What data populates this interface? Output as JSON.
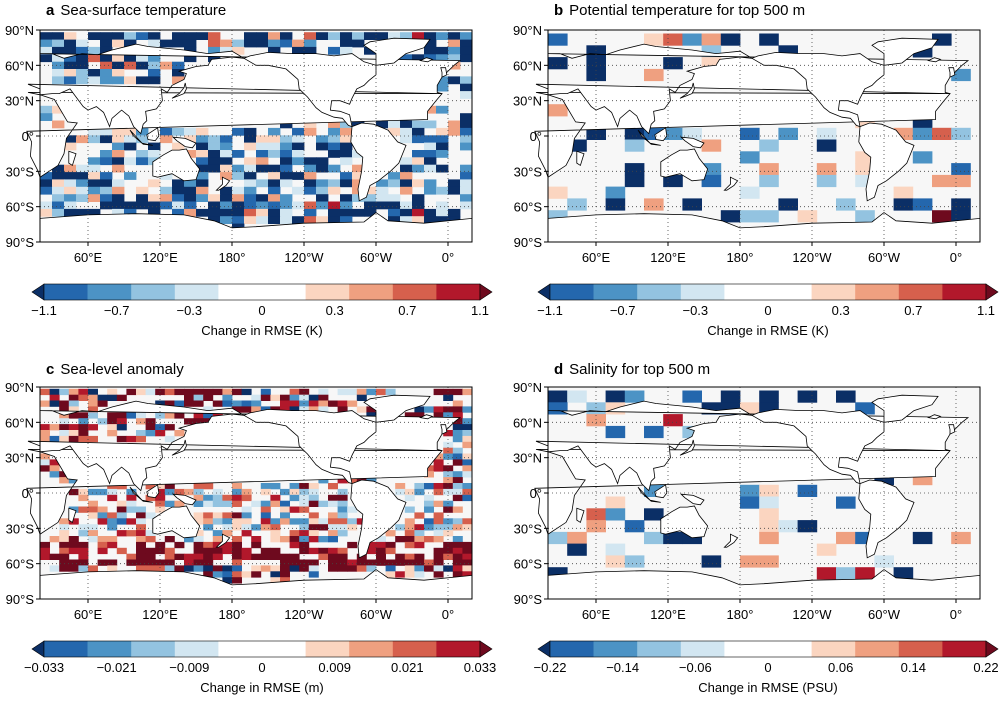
{
  "chart_data": [
    {
      "type": "heatmap",
      "panel_letter": "a",
      "title": "Sea-surface temperature",
      "lat_ticks": [
        "90°N",
        "60°N",
        "30°N",
        "0°",
        "30°S",
        "60°S",
        "90°S"
      ],
      "lon_ticks": [
        "60°E",
        "120°E",
        "180°",
        "120°W",
        "60°W",
        "0°"
      ],
      "colorbar": {
        "tick_labels": [
          "−1.1",
          "−0.7",
          "−0.3",
          "0",
          "0.3",
          "0.7",
          "1.1"
        ],
        "label": "Change in RMSE (K)",
        "range": [
          -1.1,
          1.1
        ]
      },
      "spatial_pattern": "widespread light-blue RMSE reduction, strongest dark-blue reductions in North Atlantic, North Pacific high latitudes and Southern Ocean, scattered red increases near 40°S",
      "seed": 11,
      "density": 0.85,
      "bias": -0.45,
      "res": 10
    },
    {
      "type": "heatmap",
      "panel_letter": "b",
      "title": "Potential temperature for top 500 m",
      "lat_ticks": [
        "90°N",
        "60°N",
        "30°N",
        "0°",
        "30°S",
        "60°S",
        "90°S"
      ],
      "lon_ticks": [
        "60°E",
        "120°E",
        "180°",
        "120°W",
        "60°W",
        "0°"
      ],
      "colorbar": {
        "tick_labels": [
          "−1.1",
          "−0.7",
          "−0.3",
          "0",
          "0.3",
          "0.7",
          "1.1"
        ],
        "label": "Change in RMSE (K)",
        "range": [
          -1.1,
          1.1
        ]
      },
      "spatial_pattern": "coarse grid cells, mostly light blue reductions, dark blue near Antarctica and North Atlantic, red cells near Indonesia and 40°S",
      "seed": 23,
      "density": 0.35,
      "bias": -0.3,
      "res": 16
    },
    {
      "type": "heatmap",
      "panel_letter": "c",
      "title": "Sea-level anomaly",
      "lat_ticks": [
        "90°N",
        "60°N",
        "30°N",
        "0°",
        "30°S",
        "60°S",
        "90°S"
      ],
      "lon_ticks": [
        "60°E",
        "120°E",
        "180°",
        "120°W",
        "60°W",
        "0°"
      ],
      "colorbar": {
        "tick_labels": [
          "−0.033",
          "−0.021",
          "−0.009",
          "0",
          "0.009",
          "0.021",
          "0.033"
        ],
        "label": "Change in RMSE (m)",
        "range": [
          -0.033,
          0.033
        ]
      },
      "spatial_pattern": "mixed red and blue; strong red increases along Kuroshio, Gulf Stream and Antarctic Circumpolar Current, blue in tropics",
      "seed": 37,
      "density": 0.7,
      "bias": 0.15,
      "res": 8
    },
    {
      "type": "heatmap",
      "panel_letter": "d",
      "title": "Salinity for top 500 m",
      "lat_ticks": [
        "90°N",
        "60°N",
        "30°N",
        "0°",
        "30°S",
        "60°S",
        "90°S"
      ],
      "lon_ticks": [
        "60°E",
        "120°E",
        "180°",
        "120°W",
        "60°W",
        "0°"
      ],
      "colorbar": {
        "tick_labels": [
          "−0.22",
          "−0.14",
          "−0.06",
          "0",
          "0.06",
          "0.14",
          "0.22"
        ],
        "label": "Change in RMSE (PSU)",
        "range": [
          -0.22,
          0.22
        ]
      },
      "spatial_pattern": "coarse grid cells, sparse light blue reductions, dark blue near Antarctica and Arctic, few red cells",
      "seed": 53,
      "density": 0.3,
      "bias": -0.35,
      "res": 16
    }
  ],
  "colors": {
    "scale": [
      "#0b2f66",
      "#2467ad",
      "#4c93c5",
      "#93c3e0",
      "#d2e6f1",
      "#f7f7f7",
      "#fbd5c0",
      "#efa080",
      "#d6604d",
      "#b2182b",
      "#6e0a1e"
    ],
    "land": "#ffffff",
    "ocean_neutral": "#f7f7f7"
  }
}
